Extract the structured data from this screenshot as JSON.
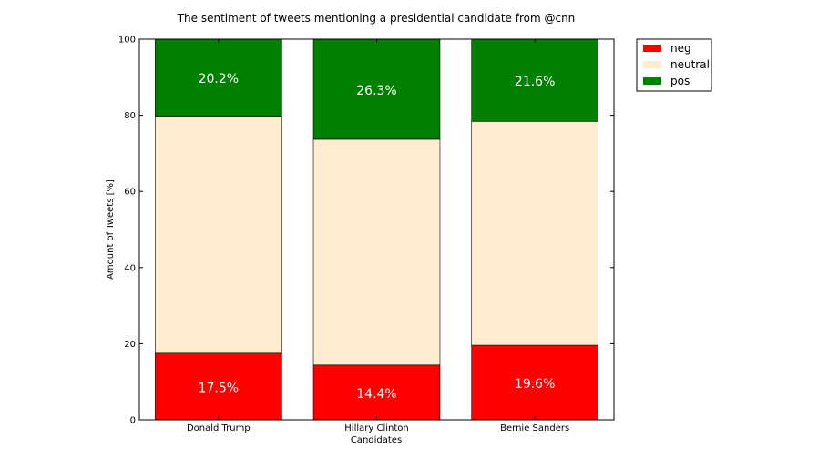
{
  "chart_data": {
    "type": "bar",
    "stacked": true,
    "title": "The sentiment of tweets mentioning a presidential candidate from @cnn",
    "xlabel": "Candidates",
    "ylabel": "Amount of Tweets [%]",
    "ylim": [
      0,
      100
    ],
    "yticks": [
      0,
      20,
      40,
      60,
      80,
      100
    ],
    "grid": false,
    "legend_position": "outside-top-right",
    "categories": [
      "Donald Trump",
      "Hillary Clinton",
      "Bernie Sanders"
    ],
    "series": [
      {
        "name": "neg",
        "color": "#ff0000",
        "values": [
          17.5,
          14.4,
          19.6
        ],
        "labels": [
          "17.5%",
          "14.4%",
          "19.6%"
        ]
      },
      {
        "name": "neutral",
        "color": "#ffebcd",
        "values": [
          62.3,
          59.3,
          58.8
        ],
        "labels": []
      },
      {
        "name": "pos",
        "color": "#008000",
        "values": [
          20.2,
          26.3,
          21.6
        ],
        "labels": [
          "20.2%",
          "26.3%",
          "21.6%"
        ]
      }
    ]
  }
}
